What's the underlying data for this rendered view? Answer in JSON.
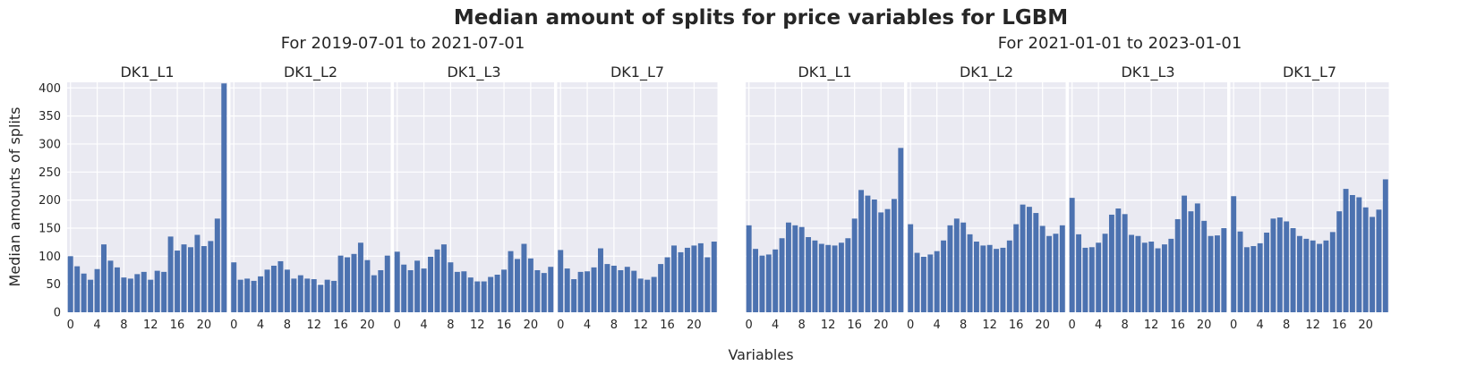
{
  "figure": {
    "title": "Median amount of splits for price variables for LGBM",
    "ylabel": "Median amounts of splits",
    "xlabel": "Variables"
  },
  "colors": {
    "bar": "#4c72b0",
    "panel_bg": "#eaeaf2",
    "grid": "#ffffff",
    "text": "#262626"
  },
  "chart_data": [
    {
      "type": "bar",
      "group_title": "For 2019-07-01 to 2021-07-01",
      "ylim": [
        0,
        410
      ],
      "yticks": [
        0,
        50,
        100,
        150,
        200,
        250,
        300,
        350,
        400
      ],
      "xticks": [
        0,
        4,
        8,
        12,
        16,
        20
      ],
      "grid": true,
      "panels": [
        {
          "title": "DK1_L1",
          "values": [
            100,
            82,
            69,
            58,
            77,
            121,
            92,
            80,
            62,
            60,
            68,
            72,
            58,
            74,
            72,
            135,
            110,
            121,
            116,
            138,
            118,
            127,
            167,
            408
          ]
        },
        {
          "title": "DK1_L2",
          "values": [
            89,
            58,
            60,
            56,
            64,
            76,
            83,
            91,
            76,
            60,
            66,
            60,
            59,
            49,
            58,
            56,
            101,
            98,
            104,
            124,
            93,
            66,
            75,
            101
          ]
        },
        {
          "title": "DK1_L3",
          "values": [
            108,
            85,
            75,
            92,
            78,
            99,
            112,
            121,
            89,
            72,
            73,
            62,
            55,
            55,
            63,
            67,
            76,
            109,
            95,
            122,
            96,
            75,
            70,
            81
          ]
        },
        {
          "title": "DK1_L7",
          "values": [
            111,
            78,
            59,
            72,
            73,
            80,
            114,
            86,
            83,
            75,
            81,
            74,
            60,
            58,
            63,
            86,
            98,
            119,
            107,
            115,
            119,
            123,
            98,
            126
          ]
        }
      ]
    },
    {
      "type": "bar",
      "group_title": "For 2021-01-01 to 2023-01-01",
      "ylim": [
        0,
        410
      ],
      "yticks": [
        0,
        50,
        100,
        150,
        200,
        250,
        300,
        350,
        400
      ],
      "xticks": [
        0,
        4,
        8,
        12,
        16,
        20
      ],
      "grid": true,
      "panels": [
        {
          "title": "DK1_L1",
          "values": [
            155,
            113,
            101,
            103,
            112,
            132,
            160,
            155,
            152,
            134,
            128,
            122,
            120,
            119,
            124,
            132,
            167,
            218,
            208,
            201,
            178,
            184,
            202,
            293
          ]
        },
        {
          "title": "DK1_L2",
          "values": [
            157,
            106,
            99,
            103,
            109,
            128,
            155,
            167,
            160,
            139,
            126,
            119,
            120,
            113,
            115,
            128,
            157,
            192,
            188,
            177,
            154,
            136,
            140,
            155
          ]
        },
        {
          "title": "DK1_L3",
          "values": [
            204,
            139,
            115,
            116,
            124,
            140,
            174,
            185,
            175,
            138,
            136,
            124,
            126,
            114,
            121,
            131,
            166,
            208,
            180,
            194,
            163,
            136,
            137,
            150
          ]
        },
        {
          "title": "DK1_L7",
          "values": [
            207,
            144,
            116,
            118,
            123,
            142,
            167,
            169,
            162,
            150,
            136,
            131,
            128,
            122,
            128,
            143,
            180,
            220,
            209,
            205,
            187,
            170,
            183,
            237
          ]
        }
      ]
    }
  ]
}
